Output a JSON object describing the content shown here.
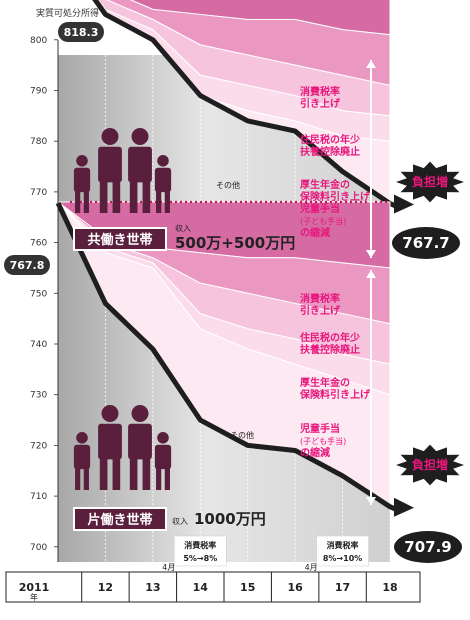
{
  "chart_data": {
    "type": "area",
    "ylabel": "実質可処分所得",
    "yunit": "万円",
    "ylim": [
      695,
      822
    ],
    "yticks": [
      700,
      710,
      720,
      730,
      740,
      750,
      760,
      770,
      780,
      790,
      800,
      810,
      820
    ],
    "categories": [
      "2011",
      "12",
      "13",
      "14",
      "15",
      "16",
      "17",
      "18"
    ],
    "year_suffix": "年",
    "dual_income": {
      "tag": "共働き世帯",
      "income_prefix": "収入",
      "income": "500万+500万円",
      "start_label": "818.3",
      "end_label": "767.7",
      "burden_label": "負担増",
      "other_label": "その他",
      "top_values": [
        818,
        818,
        818,
        818,
        818,
        818,
        818,
        818
      ],
      "layers": [
        {
          "name": "消費税率 引き上げ",
          "top": [
            818,
            810,
            806,
            805,
            804,
            804,
            802,
            801
          ],
          "color": "#d66ba3"
        },
        {
          "name": "住民税の年少 扶養控除廃止",
          "top": [
            818,
            808,
            804,
            799,
            797,
            795,
            793,
            791
          ],
          "color": "#ea98c2"
        },
        {
          "name": "厚生年金の 保険料引き上げ",
          "top": [
            818,
            806,
            802,
            793,
            791,
            789,
            786,
            785
          ],
          "color": "#f6c4dc"
        },
        {
          "name": "児童手当 (子ども手当) の縮減",
          "top": [
            818,
            805,
            800,
            789,
            786,
            784,
            781,
            780
          ],
          "color": "#fbdcea"
        }
      ],
      "net_values": [
        818.3,
        805,
        800,
        789,
        784,
        782,
        774,
        767.7
      ]
    },
    "single_income": {
      "tag": "片働き世帯",
      "income_prefix": "収入",
      "income": "1000万円",
      "start_label": "767.8",
      "end_label": "707.9",
      "burden_label": "負担増",
      "other_label": "その他",
      "top_values": [
        768,
        768,
        768,
        768,
        768,
        768,
        768,
        768
      ],
      "layers": [
        {
          "name": "消費税率 引き上げ",
          "top": [
            768,
            761,
            759,
            758,
            757,
            757,
            756,
            755
          ],
          "color": "#d66ba3"
        },
        {
          "name": "住民税の年少 扶養控除廃止",
          "top": [
            768,
            760,
            757,
            752,
            750,
            748,
            746,
            744
          ],
          "color": "#ea98c2"
        },
        {
          "name": "厚生年金の 保険料引き上げ",
          "top": [
            768,
            759,
            756,
            746,
            743,
            741,
            738,
            736
          ],
          "color": "#f6c4dc"
        },
        {
          "name": "児童手当 (子ども手当) の縮減",
          "top": [
            768,
            758,
            755,
            743,
            739,
            736,
            733,
            730
          ],
          "color": "#fbdcea"
        }
      ],
      "net_values": [
        767.8,
        748,
        739,
        725,
        720,
        719,
        714,
        707.9
      ]
    },
    "tax_notes": [
      {
        "month": "4月",
        "title": "消費税率",
        "change": "5%→8%",
        "year": "14"
      },
      {
        "month": "4月",
        "title": "消費税率",
        "change": "8%→10%",
        "year": "17"
      }
    ],
    "colors": {
      "accent": "#e8177d",
      "dark": "#333333",
      "plot_bg": "#c8c8c8",
      "tag_bg": "#5a1f3c"
    }
  }
}
